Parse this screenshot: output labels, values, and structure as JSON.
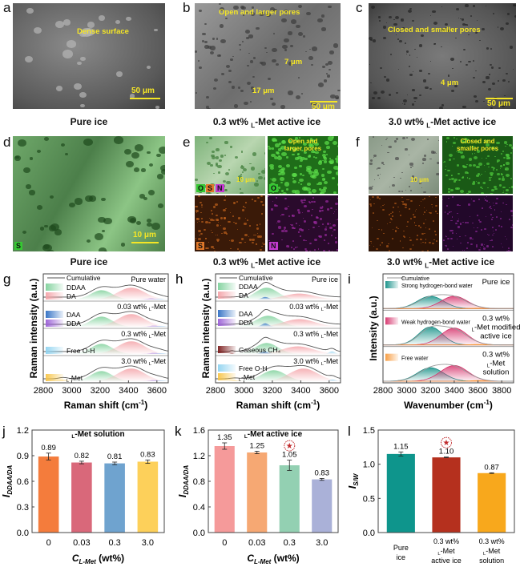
{
  "panels": {
    "a": {
      "letter": "a",
      "annotation": "Dense surface",
      "scale": "50 μm",
      "caption": "Pure ice"
    },
    "b": {
      "letter": "b",
      "annotation": "Open and larger pores",
      "size1": "7 μm",
      "size2": "17 μm",
      "scale": "50 μm",
      "caption_prefix": "0.3 wt% ",
      "caption_sub": "L",
      "caption_suffix": "-Met active ice"
    },
    "c": {
      "letter": "c",
      "annotation": "Closed and smaller pores",
      "size1": "4 μm",
      "scale": "50 μm",
      "caption_prefix": "3.0 wt% ",
      "caption_sub": "L",
      "caption_suffix": "-Met active ice"
    },
    "d": {
      "letter": "d",
      "tag": "S",
      "scale": "10 μm",
      "caption": "Pure ice"
    },
    "e": {
      "letter": "e",
      "tags": [
        "O",
        "S",
        "N"
      ],
      "scale": "10 μm",
      "annotation": "Open and larger pores",
      "tile_o": "O",
      "tile_s": "S",
      "tile_n": "N",
      "caption_prefix": "0.3 wt% ",
      "caption_sub": "L",
      "caption_suffix": "-Met active ice"
    },
    "f": {
      "letter": "f",
      "scale": "10 μm",
      "annotation": "Closed and smaller pores",
      "caption_prefix": "3.0 wt% ",
      "caption_sub": "L",
      "caption_suffix": "-Met active ice"
    }
  },
  "colors": {
    "DDAA": "#7fd19b",
    "DA": "#f4a3a8",
    "DAA": "#2f6fc4",
    "DDA": "#9a5fd6",
    "FreeOH": "#8fd3f0",
    "LMet": "#f7c548",
    "CH4": "#7a1a1a",
    "strong": "#138f86",
    "weak": "#d6336c",
    "free": "#f79a3c",
    "sem_green": "#35c832",
    "sem_orange": "#c0621c",
    "sem_purple": "#9b2aa0"
  },
  "chart_data": [
    {
      "id": "g",
      "type": "area",
      "letter": "g",
      "xlabel": "Raman shift (cm⁻¹)",
      "ylabel": "Raman intensity (a.u.)",
      "xlim": [
        2800,
        3680
      ],
      "xticks": [
        2800,
        3000,
        3200,
        3400,
        3600
      ],
      "legend": [
        {
          "label": "Cumulative",
          "color": "#555555",
          "kind": "line"
        },
        {
          "label": "DDAA",
          "color": "#7fd19b"
        },
        {
          "label": "DA",
          "color": "#f4a3a8"
        },
        {
          "label": "DAA",
          "color": "#2f6fc4"
        },
        {
          "label": "DDA",
          "color": "#9a5fd6"
        },
        {
          "label": "Free O-H",
          "color": "#8fd3f0"
        },
        {
          "label": "L-Met",
          "color": "#f7c548"
        }
      ],
      "spectra": [
        {
          "label": "Pure water",
          "peaks": [
            {
              "c": 3210,
              "s": 75,
              "a": 0.55,
              "k": "DDAA"
            },
            {
              "c": 3420,
              "s": 95,
              "a": 0.7,
              "k": "DA"
            },
            {
              "c": 3560,
              "s": 40,
              "a": 0.06,
              "k": "DDA"
            },
            {
              "c": 3620,
              "s": 30,
              "a": 0.05,
              "k": "FreeOH"
            }
          ]
        },
        {
          "label": "0.03 wt% L-Met",
          "peaks": [
            {
              "c": 3210,
              "s": 75,
              "a": 0.6,
              "k": "DDAA"
            },
            {
              "c": 3420,
              "s": 95,
              "a": 0.75,
              "k": "DA"
            },
            {
              "c": 3580,
              "s": 35,
              "a": 0.06,
              "k": "DDA"
            },
            {
              "c": 3630,
              "s": 30,
              "a": 0.05,
              "k": "FreeOH"
            }
          ]
        },
        {
          "label": "0.3 wt% L-Met",
          "peaks": [
            {
              "c": 3210,
              "s": 75,
              "a": 0.6,
              "k": "DDAA"
            },
            {
              "c": 3420,
              "s": 95,
              "a": 0.75,
              "k": "DA"
            },
            {
              "c": 3580,
              "s": 35,
              "a": 0.06,
              "k": "DDA"
            },
            {
              "c": 3630,
              "s": 30,
              "a": 0.05,
              "k": "FreeOH"
            }
          ]
        },
        {
          "label": "3.0 wt% L-Met",
          "peaks": [
            {
              "c": 2940,
              "s": 30,
              "a": 0.08,
              "k": "LMet"
            },
            {
              "c": 3210,
              "s": 75,
              "a": 0.6,
              "k": "DDAA"
            },
            {
              "c": 3420,
              "s": 95,
              "a": 0.75,
              "k": "DA"
            },
            {
              "c": 3580,
              "s": 35,
              "a": 0.06,
              "k": "DDA"
            },
            {
              "c": 3630,
              "s": 30,
              "a": 0.05,
              "k": "FreeOH"
            }
          ]
        }
      ]
    },
    {
      "id": "h",
      "type": "area",
      "letter": "h",
      "xlabel": "Raman shift (cm⁻¹)",
      "ylabel": "Raman intensity (a.u.)",
      "xlim": [
        2800,
        3680
      ],
      "xticks": [
        2800,
        3000,
        3200,
        3400,
        3600
      ],
      "legend": [
        {
          "label": "Cumulative",
          "color": "#555555",
          "kind": "line"
        },
        {
          "label": "DDAA",
          "color": "#7fd19b"
        },
        {
          "label": "DA",
          "color": "#f4a3a8"
        },
        {
          "label": "DAA",
          "color": "#2f6fc4"
        },
        {
          "label": "DDA",
          "color": "#9a5fd6"
        },
        {
          "label": "Gaseous CH₄",
          "color": "#7a1a1a"
        },
        {
          "label": "Free O-H",
          "color": "#8fd3f0"
        },
        {
          "label": "L-Met",
          "color": "#f7c548"
        }
      ],
      "spectra": [
        {
          "label": "Pure ice",
          "peaks": [
            {
              "c": 3160,
              "s": 80,
              "a": 0.7,
              "k": "DDAA"
            },
            {
              "c": 3150,
              "s": 25,
              "a": 0.15,
              "k": "DAA"
            },
            {
              "c": 3390,
              "s": 110,
              "a": 0.35,
              "k": "DA"
            }
          ]
        },
        {
          "label": "0.03 wt% L-Met",
          "peaks": [
            {
              "c": 3170,
              "s": 85,
              "a": 0.65,
              "k": "DDAA"
            },
            {
              "c": 3150,
              "s": 25,
              "a": 0.2,
              "k": "DAA"
            },
            {
              "c": 3390,
              "s": 110,
              "a": 0.45,
              "k": "DA"
            }
          ]
        },
        {
          "label": "0.3 wt% L-Met",
          "peaks": [
            {
              "c": 2915,
              "s": 12,
              "a": 0.05,
              "k": "CH4"
            },
            {
              "c": 3160,
              "s": 80,
              "a": 0.65,
              "k": "DDAA"
            },
            {
              "c": 3145,
              "s": 25,
              "a": 0.15,
              "k": "DAA"
            },
            {
              "c": 3380,
              "s": 110,
              "a": 0.45,
              "k": "DA"
            },
            {
              "c": 3620,
              "s": 22,
              "a": 0.15,
              "k": "FreeOH"
            }
          ]
        },
        {
          "label": "3.0 wt% L-Met",
          "peaks": [
            {
              "c": 2935,
              "s": 30,
              "a": 0.05,
              "k": "LMet"
            },
            {
              "c": 3210,
              "s": 85,
              "a": 0.65,
              "k": "DDAA"
            },
            {
              "c": 3420,
              "s": 100,
              "a": 0.75,
              "k": "DA"
            },
            {
              "c": 3625,
              "s": 22,
              "a": 0.1,
              "k": "FreeOH"
            }
          ]
        }
      ]
    },
    {
      "id": "i",
      "type": "area",
      "letter": "i",
      "xlabel": "Wavenumber (cm⁻¹)",
      "ylabel": "Intensity (a.u.)",
      "xlim": [
        2800,
        3900
      ],
      "xticks": [
        2800,
        3000,
        3200,
        3400,
        3600,
        3800
      ],
      "legend": [
        {
          "label": "Cumulative",
          "color": "#999999",
          "kind": "line"
        },
        {
          "label": "Strong hydrogen-bond water",
          "color": "#138f86"
        },
        {
          "label": "Weak hydrogen-bond water",
          "color": "#d6336c"
        },
        {
          "label": "Free water",
          "color": "#f79a3c"
        }
      ],
      "spectra": [
        {
          "label": "Pure ice",
          "peaks": [
            {
              "c": 3200,
              "s": 110,
              "a": 0.55,
              "k": "strong"
            },
            {
              "c": 3400,
              "s": 110,
              "a": 0.55,
              "k": "weak"
            },
            {
              "c": 3600,
              "s": 60,
              "a": 0.02,
              "k": "free"
            }
          ]
        },
        {
          "label": "0.3 wt% L-Met modified active ice",
          "peaks": [
            {
              "c": 3200,
              "s": 100,
              "a": 0.8,
              "k": "strong"
            },
            {
              "c": 3400,
              "s": 110,
              "a": 0.75,
              "k": "weak"
            },
            {
              "c": 3600,
              "s": 60,
              "a": 0.02,
              "k": "free"
            }
          ]
        },
        {
          "label": "0.3 wt% L-Met solution",
          "peaks": [
            {
              "c": 3200,
              "s": 110,
              "a": 0.6,
              "k": "strong"
            },
            {
              "c": 3400,
              "s": 115,
              "a": 0.7,
              "k": "weak"
            },
            {
              "c": 3600,
              "s": 60,
              "a": 0.03,
              "k": "free"
            }
          ]
        }
      ]
    },
    {
      "id": "j",
      "type": "bar",
      "letter": "j",
      "title": "L-Met solution",
      "xlabel": "C_L-Met (wt%)",
      "ylabel": "I_DDAA/DA",
      "categories": [
        "0",
        "0.03",
        "0.3",
        "3.0"
      ],
      "values": [
        0.89,
        0.82,
        0.81,
        0.83
      ],
      "errors": [
        0.04,
        0.015,
        0.015,
        0.02
      ],
      "labels": [
        "0.89",
        "0.82",
        "0.81",
        "0.83"
      ],
      "colors": [
        "#f47c3c",
        "#d9687a",
        "#6fa3cf",
        "#fdd05a"
      ],
      "ylim": [
        0,
        1.2
      ],
      "yticks": [
        "0.0",
        "0.3",
        "0.6",
        "0.9",
        "1.2"
      ]
    },
    {
      "id": "k",
      "type": "bar",
      "letter": "k",
      "title": "L-Met active ice",
      "xlabel": "C_L-Met (wt%)",
      "ylabel": "I_DDAA/DA",
      "categories": [
        "0",
        "0.03",
        "0.3",
        "3.0"
      ],
      "values": [
        1.35,
        1.25,
        1.05,
        0.83
      ],
      "errors": [
        0.05,
        0.02,
        0.08,
        0.015
      ],
      "labels": [
        "1.35",
        "1.25",
        "1.05",
        "0.83"
      ],
      "colors": [
        "#f59a9a",
        "#f6a873",
        "#93d0b2",
        "#aab1d8"
      ],
      "ylim": [
        0,
        1.6
      ],
      "yticks": [
        "0.0",
        "0.4",
        "0.8",
        "1.2",
        "1.6"
      ],
      "star_index": 2
    },
    {
      "id": "l",
      "type": "bar",
      "letter": "l",
      "title": "",
      "xlabel": "",
      "ylabel": "I_S/W",
      "categories": [
        "Pure ice",
        "0.3 wt% L-Met active ice",
        "0.3 wt% L-Met solution"
      ],
      "values": [
        1.15,
        1.1,
        0.87
      ],
      "errors": [
        0.03,
        0.005,
        0.005
      ],
      "labels": [
        "1.15",
        "1.10",
        "0.87"
      ],
      "colors": [
        "#0e958c",
        "#b5301e",
        "#f8a81c"
      ],
      "ylim": [
        0,
        1.5
      ],
      "yticks": [
        "0.0",
        "0.5",
        "1.0",
        "1.5"
      ],
      "star_index": 1
    }
  ]
}
